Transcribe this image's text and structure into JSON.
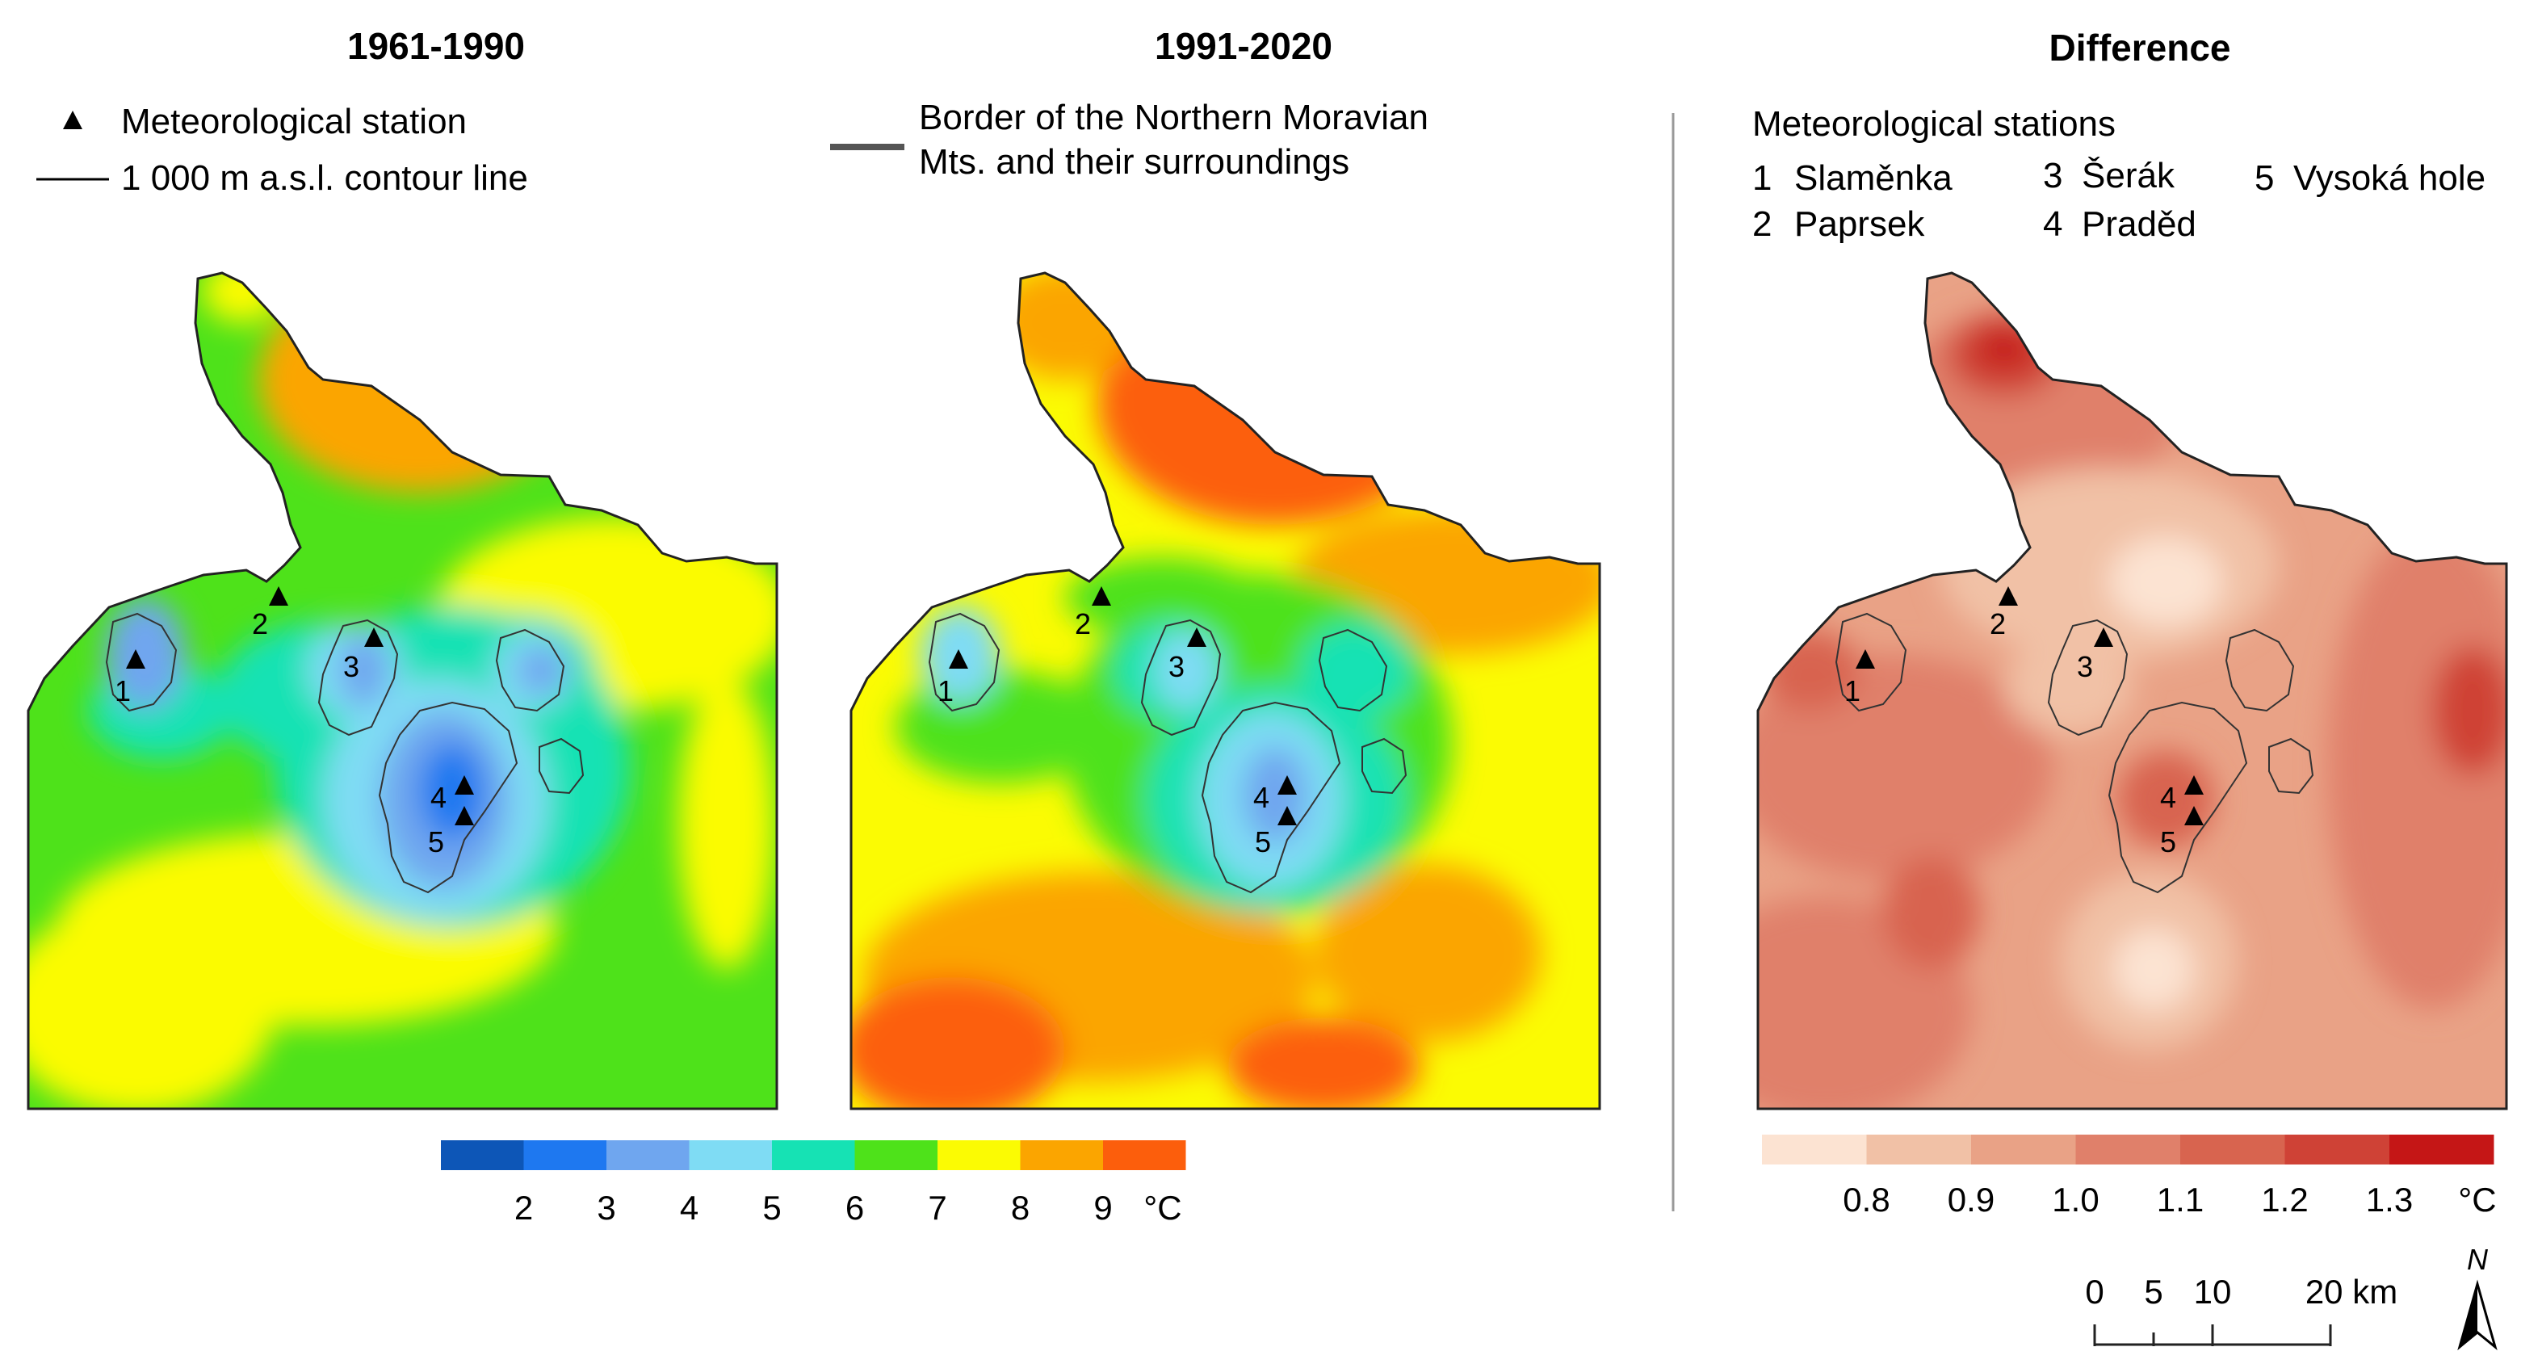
{
  "panels": [
    {
      "title": "1961-1990"
    },
    {
      "title": "1991-2020"
    },
    {
      "title": "Difference"
    }
  ],
  "legend_left": {
    "station": "Meteorological station",
    "contour": "1 000 m a.s.l. contour line"
  },
  "legend_mid": {
    "border_line1": "Border of the Northern Moravian",
    "border_line2": "Mts. and their surroundings"
  },
  "legend_right": {
    "heading": "Meteorological stations",
    "stations": [
      {
        "num": "1",
        "name": "Slaměnka"
      },
      {
        "num": "2",
        "name": "Paprsek"
      },
      {
        "num": "3",
        "name": "Šerák"
      },
      {
        "num": "4",
        "name": "Praděd"
      },
      {
        "num": "5",
        "name": "Vysoká hole"
      }
    ]
  },
  "temp_scale": {
    "colors": [
      "#0d56b7",
      "#1e78f0",
      "#6fa6ef",
      "#7fdcf4",
      "#16e2b4",
      "#4ee21a",
      "#fbfb03",
      "#fba500",
      "#fc5e0c"
    ],
    "ticks": [
      "2",
      "3",
      "4",
      "5",
      "6",
      "7",
      "8",
      "9"
    ],
    "unit": "°C"
  },
  "diff_scale": {
    "colors": [
      "#fce3d2",
      "#f1c1a6",
      "#e9a286",
      "#e0806a",
      "#d8644f",
      "#cf4236",
      "#c51616"
    ],
    "ticks": [
      "0.8",
      "0.9",
      "1.0",
      "1.1",
      "1.2",
      "1.3"
    ],
    "unit": "°C"
  },
  "scale_bar": {
    "ticks": [
      "0",
      "5",
      "10",
      "20 km"
    ]
  },
  "north": "N",
  "map_colors": {
    "border": "#222222",
    "contour": "#333333",
    "divider": "#999999"
  }
}
